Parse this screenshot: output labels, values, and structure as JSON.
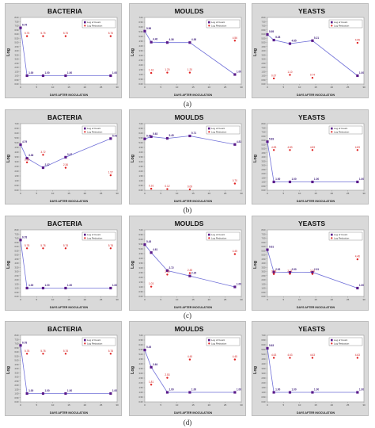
{
  "figure": {
    "rows": [
      {
        "label": "(a)"
      },
      {
        "label": "(b)"
      },
      {
        "label": "(c)"
      },
      {
        "label": "(d)"
      }
    ]
  },
  "colors": {
    "count_line": "#7070d8",
    "count_marker": "#5a1a8a",
    "reduction_marker": "#e02020",
    "plot_bg": "#ffffff",
    "outer_bg": "#d9d9d9"
  },
  "chart_data": [
    {
      "type": "line",
      "row": "a",
      "title": "BACTERIA",
      "xlabel": "DAYS AFTER INOCULATION",
      "ylabel": "Log",
      "xlim": [
        0,
        30
      ],
      "ylim": [
        0,
        8
      ],
      "xticks": [
        0,
        5,
        10,
        15,
        20,
        25,
        30
      ],
      "yticks": [
        0,
        0.5,
        1,
        1.5,
        2,
        2.5,
        3,
        3.5,
        4,
        4.5,
        5,
        5.5,
        6,
        6.5,
        7,
        7.5,
        8
      ],
      "legend": [
        "Log of Count",
        "Log Reduction"
      ],
      "series": [
        {
          "name": "Log of Count",
          "x": [
            0,
            2,
            7,
            14,
            28
          ],
          "y": [
            6.75,
            1.0,
            1.0,
            1.0,
            1.0
          ],
          "labels": [
            "6.75",
            "1.00",
            "1.00",
            "1.00",
            "1.00"
          ]
        },
        {
          "name": "Log Reduction",
          "x": [
            2,
            7,
            14,
            28
          ],
          "y": [
            5.75,
            5.75,
            5.75,
            5.75
          ],
          "labels": [
            "5.75",
            "5.75",
            "5.75",
            "5.75"
          ]
        }
      ]
    },
    {
      "type": "line",
      "row": "a",
      "title": "MOULDS",
      "xlabel": "DAYS AFTER INOCULATION",
      "ylabel": "Log",
      "xlim": [
        0,
        30
      ],
      "ylim": [
        0,
        7
      ],
      "xticks": [
        0,
        5,
        10,
        15,
        20,
        25,
        30
      ],
      "yticks": [
        0,
        0.5,
        1,
        1.5,
        2,
        2.5,
        3,
        3.5,
        4,
        4.5,
        5,
        5.5,
        6,
        6.5,
        7
      ],
      "legend": [
        "Log of Count",
        "Log Reduction"
      ],
      "series": [
        {
          "name": "Log of Count",
          "x": [
            0,
            2,
            7,
            14,
            28
          ],
          "y": [
            5.56,
            4.4,
            4.36,
            4.36,
            1.0
          ],
          "labels": [
            "5.56",
            "4.40",
            "4.36",
            "4.36",
            "1.00"
          ]
        },
        {
          "name": "Log Reduction",
          "x": [
            2,
            7,
            14,
            28
          ],
          "y": [
            1.16,
            1.2,
            1.2,
            4.56
          ],
          "labels": [
            "1.16",
            "1.20",
            "1.20",
            "4.56"
          ]
        }
      ]
    },
    {
      "type": "line",
      "row": "a",
      "title": "YEASTS",
      "xlabel": "DAYS AFTER INOCULATION",
      "ylabel": "Log",
      "xlim": [
        0,
        30
      ],
      "ylim": [
        0,
        8
      ],
      "xticks": [
        0,
        5,
        10,
        15,
        20,
        25,
        30
      ],
      "yticks": [
        0,
        0.5,
        1,
        1.5,
        2,
        2.5,
        3,
        3.5,
        4,
        4.5,
        5,
        5.5,
        6,
        6.5,
        7,
        7.5,
        8
      ],
      "legend": [
        "Log of Count",
        "Log Reduction"
      ],
      "series": [
        {
          "name": "Log of Count",
          "x": [
            0,
            2,
            7,
            14,
            28
          ],
          "y": [
            5.95,
            5.28,
            4.85,
            5.21,
            1.0
          ],
          "labels": [
            "5.95",
            "5.28",
            "4.85",
            "5.21",
            "1.00"
          ]
        },
        {
          "name": "Log Reduction",
          "x": [
            2,
            7,
            14,
            28
          ],
          "y": [
            0.67,
            1.1,
            0.74,
            4.95
          ],
          "labels": [
            "0.67",
            "1.10",
            "0.74",
            "4.95"
          ]
        }
      ]
    },
    {
      "type": "line",
      "row": "b",
      "title": "BACTERIA",
      "xlabel": "DAYS AFTER INOCULATION",
      "ylabel": "Log",
      "xlim": [
        0,
        30
      ],
      "ylim": [
        0,
        7
      ],
      "xticks": [
        0,
        5,
        10,
        15,
        20,
        25,
        30
      ],
      "yticks": [
        0,
        0.5,
        1,
        1.5,
        2,
        2.5,
        3,
        3.5,
        4,
        4.5,
        5,
        5.5,
        6,
        6.5,
        7
      ],
      "legend": [
        "Log of Count",
        "Log Reduction"
      ],
      "series": [
        {
          "name": "Log of Count",
          "x": [
            0,
            2,
            7,
            14,
            28
          ],
          "y": [
            4.79,
            3.36,
            2.37,
            3.47,
            5.43
          ],
          "labels": [
            "4.79",
            "3.36",
            "2.37",
            "3.47",
            "5.43"
          ]
        },
        {
          "name": "Log Reduction",
          "x": [
            2,
            7,
            14,
            28
          ],
          "y": [
            2.93,
            3.72,
            2.36,
            1.57
          ],
          "labels": [
            "2.93",
            "3.72",
            "2.36",
            "1.57"
          ]
        }
      ]
    },
    {
      "type": "line",
      "row": "b",
      "title": "MOULDS",
      "xlabel": "DAYS AFTER INOCULATION",
      "ylabel": "Log",
      "xlim": [
        0,
        30
      ],
      "ylim": [
        0,
        7
      ],
      "xticks": [
        0,
        5,
        10,
        15,
        20,
        25,
        30
      ],
      "yticks": [
        0,
        0.5,
        1,
        1.5,
        2,
        2.5,
        3,
        3.5,
        4,
        4.5,
        5,
        5.5,
        6,
        6.5,
        7
      ],
      "legend": [
        "Log of Count",
        "Log Reduction"
      ],
      "series": [
        {
          "name": "Log of Count",
          "x": [
            0,
            2,
            7,
            14,
            28
          ],
          "y": [
            5.4,
            5.63,
            5.45,
            5.71,
            4.81
          ],
          "labels": [
            "5.40",
            "5.63",
            "5.45",
            "5.71",
            "4.81"
          ]
        },
        {
          "name": "Log Reduction",
          "x": [
            2,
            7,
            14,
            28
          ],
          "y": [
            0.16,
            0.12,
            0.09,
            0.7
          ],
          "labels": [
            "0.16",
            "0.12",
            "0.09",
            "0.70"
          ]
        }
      ]
    },
    {
      "type": "line",
      "row": "b",
      "title": "YEASTS",
      "xlabel": "DAYS AFTER INOCULATION",
      "ylabel": "Log",
      "xlim": [
        0,
        30
      ],
      "ylim": [
        0,
        8
      ],
      "xticks": [
        0,
        5,
        10,
        15,
        20,
        25,
        30
      ],
      "yticks": [
        0,
        0.5,
        1,
        1.5,
        2,
        2.5,
        3,
        3.5,
        4,
        4.5,
        5,
        5.5,
        6,
        6.5,
        7,
        7.5,
        8
      ],
      "legend": [
        "Log of Count",
        "Log Reduction"
      ],
      "series": [
        {
          "name": "Log of Count",
          "x": [
            0,
            2,
            7,
            14,
            28
          ],
          "y": [
            5.83,
            1.0,
            1.0,
            1.0,
            1.0
          ],
          "labels": [
            "5.83",
            "1.00",
            "1.00",
            "1.00",
            "1.00"
          ]
        },
        {
          "name": "Log Reduction",
          "x": [
            2,
            7,
            14,
            28
          ],
          "y": [
            4.83,
            4.83,
            4.83,
            4.83
          ],
          "labels": [
            "4.83",
            "4.83",
            "4.83",
            "4.83"
          ]
        }
      ]
    },
    {
      "type": "line",
      "row": "c",
      "title": "BACTERIA",
      "xlabel": "DAYS AFTER INOCULATION",
      "ylabel": "Log",
      "xlim": [
        0,
        30
      ],
      "ylim": [
        0,
        8
      ],
      "xticks": [
        0,
        5,
        10,
        15,
        20,
        25,
        30
      ],
      "yticks": [
        0,
        0.5,
        1,
        1.5,
        2,
        2.5,
        3,
        3.5,
        4,
        4.5,
        5,
        5.5,
        6,
        6.5,
        7,
        7.5,
        8
      ],
      "legend": [
        "Log of Count",
        "Log Reduction"
      ],
      "series": [
        {
          "name": "Log of Count",
          "x": [
            0,
            2,
            7,
            14,
            28
          ],
          "y": [
            6.78,
            1.0,
            1.0,
            1.0,
            1.0
          ],
          "labels": [
            "6.78",
            "1.00",
            "1.00",
            "1.00",
            "1.00"
          ]
        },
        {
          "name": "Log Reduction",
          "x": [
            2,
            7,
            14,
            28
          ],
          "y": [
            5.78,
            5.78,
            5.78,
            5.78
          ],
          "labels": [
            "5.78",
            "5.78",
            "5.78",
            "5.78"
          ]
        }
      ]
    },
    {
      "type": "line",
      "row": "c",
      "title": "MOULDS",
      "xlabel": "DAYS AFTER INOCULATION",
      "ylabel": "Log",
      "xlim": [
        0,
        30
      ],
      "ylim": [
        0,
        7
      ],
      "xticks": [
        0,
        5,
        10,
        15,
        20,
        25,
        30
      ],
      "yticks": [
        0,
        0.5,
        1,
        1.5,
        2,
        2.5,
        3,
        3.5,
        4,
        4.5,
        5,
        5.5,
        6,
        6.5,
        7
      ],
      "legend": [
        "Log of Count",
        "Log Reduction"
      ],
      "series": [
        {
          "name": "Log of Count",
          "x": [
            0,
            2,
            7,
            14,
            28
          ],
          "y": [
            5.45,
            4.61,
            2.72,
            2.15,
            1.0
          ],
          "labels": [
            "5.45",
            "4.61",
            "2.72",
            "2.15",
            "1.00"
          ]
        },
        {
          "name": "Log Reduction",
          "x": [
            2,
            7,
            14,
            28
          ],
          "y": [
            1.03,
            2.3,
            2.45,
            4.45
          ],
          "labels": [
            "1.03",
            "2.30",
            "2.45",
            "4.45"
          ]
        }
      ]
    },
    {
      "type": "line",
      "row": "c",
      "title": "YEASTS",
      "xlabel": "DAYS AFTER INOCULATION",
      "ylabel": "Log",
      "xlim": [
        0,
        30
      ],
      "ylim": [
        0,
        8
      ],
      "xticks": [
        0,
        5,
        10,
        15,
        20,
        25,
        30
      ],
      "yticks": [
        0,
        0.5,
        1,
        1.5,
        2,
        2.5,
        3,
        3.5,
        4,
        4.5,
        5,
        5.5,
        6,
        6.5,
        7,
        7.5,
        8
      ],
      "legend": [
        "Log of Count",
        "Log Reduction"
      ],
      "series": [
        {
          "name": "Log of Count",
          "x": [
            0,
            2,
            7,
            14,
            28
          ],
          "y": [
            5.61,
            2.92,
            2.9,
            2.91,
            1.0
          ],
          "labels": [
            "5.61",
            "2.92",
            "2.90",
            "2.91",
            "1.00"
          ]
        },
        {
          "name": "Log Reduction",
          "x": [
            2,
            7,
            14,
            28
          ],
          "y": [
            2.69,
            2.71,
            2.7,
            4.46
          ],
          "labels": [
            "2.69",
            "2.71",
            "2.70",
            "4.46"
          ]
        }
      ]
    },
    {
      "type": "line",
      "row": "d",
      "title": "BACTERIA",
      "xlabel": "DAYS AFTER INOCULATION",
      "ylabel": "Log",
      "xlim": [
        0,
        30
      ],
      "ylim": [
        0,
        8
      ],
      "xticks": [
        0,
        5,
        10,
        15,
        20,
        25,
        30
      ],
      "yticks": [
        0,
        0.5,
        1,
        1.5,
        2,
        2.5,
        3,
        3.5,
        4,
        4.5,
        5,
        5.5,
        6,
        6.5,
        7,
        7.5,
        8
      ],
      "legend": [
        "Log of Count",
        "Log Reduction"
      ],
      "series": [
        {
          "name": "Log of Count",
          "x": [
            0,
            2,
            7,
            14,
            28
          ],
          "y": [
            6.78,
            1.0,
            1.0,
            1.0,
            1.0
          ],
          "labels": [
            "6.78",
            "1.00",
            "1.00",
            "1.00",
            "1.00"
          ]
        },
        {
          "name": "Log Reduction",
          "x": [
            2,
            7,
            14,
            28
          ],
          "y": [
            5.78,
            5.78,
            5.78,
            5.78
          ],
          "labels": [
            "5.78",
            "5.78",
            "5.78",
            "5.78"
          ]
        }
      ]
    },
    {
      "type": "line",
      "row": "d",
      "title": "MOULDS",
      "xlabel": "DAYS AFTER INOCULATION",
      "ylabel": "Log",
      "xlim": [
        0,
        30
      ],
      "ylim": [
        0,
        7
      ],
      "xticks": [
        0,
        5,
        10,
        15,
        20,
        25,
        30
      ],
      "yticks": [
        0,
        0.5,
        1,
        1.5,
        2,
        2.5,
        3,
        3.5,
        4,
        4.5,
        5,
        5.5,
        6,
        6.5,
        7
      ],
      "legend": [
        "Log of Count",
        "Log Reduction"
      ],
      "series": [
        {
          "name": "Log of Count",
          "x": [
            0,
            2,
            7,
            14,
            28
          ],
          "y": [
            5.45,
            3.64,
            1.0,
            1.0,
            1.0
          ],
          "labels": [
            "5.45",
            "3.64",
            "1.00",
            "1.00",
            "1.00"
          ]
        },
        {
          "name": "Log Reduction",
          "x": [
            2,
            7,
            14,
            28
          ],
          "y": [
            1.81,
            2.53,
            4.45,
            4.45
          ],
          "labels": [
            "1.81",
            "2.53",
            "4.45",
            "4.45"
          ]
        }
      ]
    },
    {
      "type": "line",
      "row": "d",
      "title": "YEASTS",
      "xlabel": "DAYS AFTER INOCULATION",
      "ylabel": "Log",
      "xlim": [
        0,
        30
      ],
      "ylim": [
        0,
        7
      ],
      "xticks": [
        0,
        5,
        10,
        15,
        20,
        25,
        30
      ],
      "yticks": [
        0,
        0.5,
        1,
        1.5,
        2,
        2.5,
        3,
        3.5,
        4,
        4.5,
        5,
        5.5,
        6,
        6.5,
        7
      ],
      "legend": [
        "Log of Count",
        "Log Reduction"
      ],
      "series": [
        {
          "name": "Log of Count",
          "x": [
            0,
            2,
            7,
            14,
            28
          ],
          "y": [
            5.63,
            1.0,
            1.0,
            1.0,
            1.0
          ],
          "labels": [
            "5.63",
            "1.00",
            "1.00",
            "1.00",
            "1.00"
          ]
        },
        {
          "name": "Log Reduction",
          "x": [
            2,
            7,
            14,
            28
          ],
          "y": [
            4.63,
            4.63,
            4.63,
            4.63
          ],
          "labels": [
            "4.63",
            "4.63",
            "4.63",
            "4.63"
          ]
        }
      ]
    }
  ]
}
